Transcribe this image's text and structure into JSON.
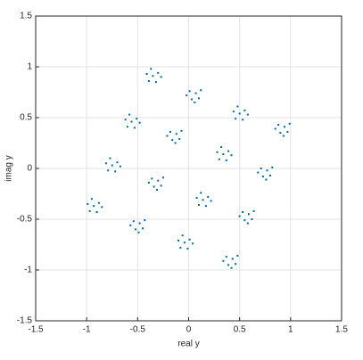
{
  "chart_data": {
    "type": "scatter",
    "xlabel": "real y",
    "ylabel": "imag y",
    "color": "#0067a5",
    "grid": true,
    "xlim": [
      -1.5,
      1.5
    ],
    "ylim": [
      -1.5,
      1.5
    ],
    "xticks": [
      -1.5,
      -1,
      -0.5,
      0,
      0.5,
      1,
      1.5
    ],
    "yticks": [
      -1.5,
      -1,
      -0.5,
      0,
      0.5,
      1,
      1.5
    ],
    "x": [
      -0.35,
      -0.3,
      -0.41,
      -0.32,
      -0.39,
      -0.27,
      -0.37,
      0.07,
      0.01,
      0.12,
      0.03,
      0.1,
      -0.02,
      0.06,
      0.5,
      0.55,
      0.44,
      0.53,
      0.46,
      0.58,
      0.48,
      0.94,
      0.88,
      0.99,
      0.9,
      0.97,
      0.85,
      0.93,
      -0.56,
      -0.51,
      -0.62,
      -0.53,
      -0.6,
      -0.48,
      -0.58,
      -0.12,
      -0.18,
      -0.07,
      -0.16,
      -0.09,
      -0.21,
      -0.13,
      0.34,
      0.39,
      0.28,
      0.37,
      0.3,
      0.42,
      0.32,
      0.77,
      0.71,
      0.82,
      0.73,
      0.8,
      0.68,
      0.76,
      -0.75,
      -0.7,
      -0.81,
      -0.72,
      -0.79,
      -0.67,
      -0.77,
      -0.3,
      -0.36,
      -0.25,
      -0.34,
      -0.27,
      -0.39,
      -0.31,
      0.14,
      0.19,
      0.08,
      0.17,
      0.1,
      0.22,
      0.12,
      0.59,
      0.53,
      0.64,
      0.55,
      0.62,
      0.5,
      0.58,
      -0.93,
      -0.88,
      -0.99,
      -0.9,
      -0.97,
      -0.85,
      -0.95,
      -0.48,
      -0.54,
      -0.43,
      -0.52,
      -0.45,
      -0.57,
      -0.49,
      -0.04,
      0.01,
      -0.1,
      -0.01,
      -0.08,
      0.04,
      -0.06,
      0.43,
      0.37,
      0.48,
      0.39,
      0.46,
      0.34,
      0.42
    ],
    "y": [
      0.91,
      0.94,
      0.93,
      0.85,
      0.86,
      0.9,
      0.98,
      0.74,
      0.76,
      0.77,
      0.68,
      0.69,
      0.72,
      0.65,
      0.54,
      0.57,
      0.56,
      0.48,
      0.49,
      0.53,
      0.61,
      0.41,
      0.43,
      0.44,
      0.35,
      0.36,
      0.39,
      0.32,
      0.46,
      0.49,
      0.48,
      0.4,
      0.41,
      0.45,
      0.53,
      0.34,
      0.36,
      0.37,
      0.28,
      0.29,
      0.32,
      0.25,
      0.14,
      0.17,
      0.16,
      0.08,
      0.09,
      0.13,
      0.21,
      -0.02,
      0.0,
      0.01,
      -0.08,
      -0.07,
      -0.04,
      -0.11,
      0.03,
      0.06,
      0.05,
      -0.03,
      -0.02,
      0.02,
      0.1,
      -0.12,
      -0.1,
      -0.09,
      -0.18,
      -0.17,
      -0.14,
      -0.21,
      -0.31,
      -0.28,
      -0.29,
      -0.37,
      -0.36,
      -0.32,
      -0.24,
      -0.45,
      -0.43,
      -0.42,
      -0.51,
      -0.5,
      -0.47,
      -0.54,
      -0.37,
      -0.34,
      -0.35,
      -0.43,
      -0.42,
      -0.38,
      -0.3,
      -0.54,
      -0.52,
      -0.51,
      -0.6,
      -0.59,
      -0.56,
      -0.63,
      -0.73,
      -0.7,
      -0.71,
      -0.79,
      -0.78,
      -0.74,
      -0.66,
      -0.89,
      -0.87,
      -0.86,
      -0.95,
      -0.94,
      -0.91,
      -0.98
    ]
  }
}
